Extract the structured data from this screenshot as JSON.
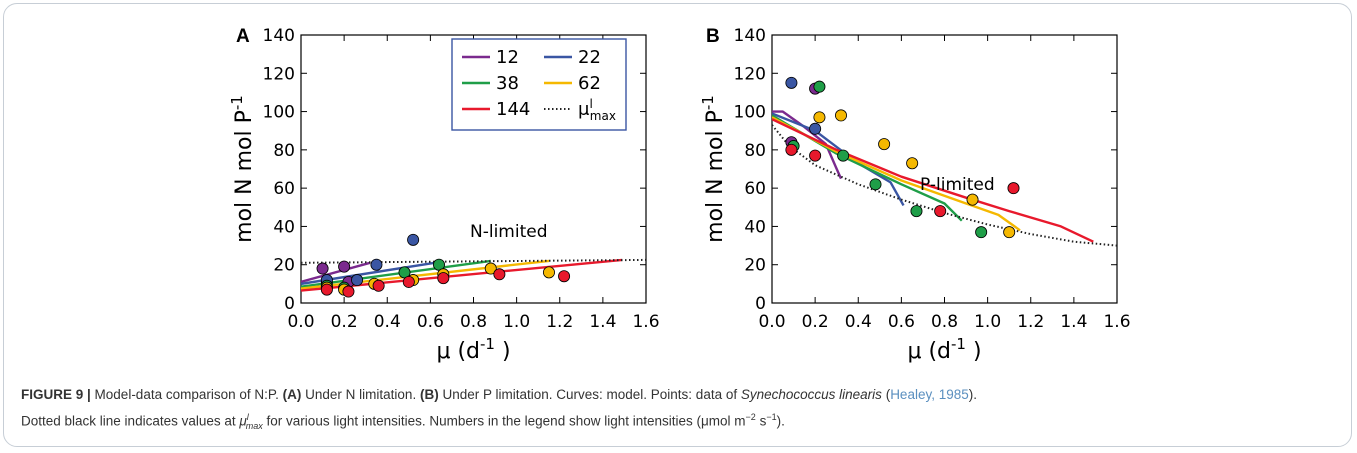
{
  "caption": {
    "figure_label": "FIGURE 9 |",
    "text_1": " Model-data comparison of N:P. ",
    "label_a": "(A)",
    "text_2": " Under N limitation. ",
    "label_b": "(B)",
    "text_3": " Under P limitation. Curves: model. Points: data of ",
    "species": "Synechococcus linearis",
    "text_4": " (",
    "citation": "Healey, 1985",
    "text_5": ").",
    "line2_a": "Dotted black line indicates values at ",
    "mu_symbol": "μ",
    "mu_sup": "l",
    "mu_sub": "max",
    "line2_b": " for various light intensities. Numbers in the legend show light intensities (μmol m",
    "unit_sup1": "−2",
    "line2_c": " s",
    "unit_sup2": "−1",
    "line2_d": ")."
  },
  "chart_data": [
    {
      "panel": "A",
      "type": "line",
      "xlabel": "μ (d-1 )",
      "ylabel": "mol N mol P-1",
      "xlim": [
        0,
        1.6
      ],
      "ylim": [
        0,
        140
      ],
      "xticks": [
        "0.0",
        "0.2",
        "0.4",
        "0.6",
        "0.8",
        "1.0",
        "1.2",
        "1.4",
        "1.6"
      ],
      "yticks": [
        "0",
        "20",
        "40",
        "60",
        "80",
        "100",
        "120",
        "140"
      ],
      "annotation": "N-limited",
      "legend_position": "top-right",
      "series": [
        {
          "name": "12",
          "color": "#7b2a8e",
          "x": [
            0,
            0.32
          ],
          "y": [
            11,
            21
          ]
        },
        {
          "name": "22",
          "color": "#3a56a3",
          "x": [
            0,
            0.62
          ],
          "y": [
            10,
            21
          ]
        },
        {
          "name": "38",
          "color": "#1f9e48",
          "x": [
            0,
            0.88
          ],
          "y": [
            8.5,
            22
          ]
        },
        {
          "name": "62",
          "color": "#f5b800",
          "x": [
            0,
            1.15
          ],
          "y": [
            7.5,
            22
          ]
        },
        {
          "name": "144",
          "color": "#e8192c",
          "x": [
            0,
            1.49
          ],
          "y": [
            6.5,
            22.5
          ]
        },
        {
          "name": "μmax",
          "color": "#222222",
          "style": "dotted",
          "x": [
            0,
            1.6
          ],
          "y": [
            21,
            22.5
          ]
        }
      ],
      "points": [
        {
          "series": "12",
          "x": 0.1,
          "y": 18
        },
        {
          "series": "12",
          "x": 0.2,
          "y": 19
        },
        {
          "series": "12",
          "x": 0.22,
          "y": 11
        },
        {
          "series": "12",
          "x": 0.12,
          "y": 10.5
        },
        {
          "series": "22",
          "x": 0.35,
          "y": 20
        },
        {
          "series": "22",
          "x": 0.52,
          "y": 33
        },
        {
          "series": "22",
          "x": 0.26,
          "y": 12
        },
        {
          "series": "22",
          "x": 0.12,
          "y": 12
        },
        {
          "series": "38",
          "x": 0.48,
          "y": 16
        },
        {
          "series": "38",
          "x": 0.64,
          "y": 20
        },
        {
          "series": "38",
          "x": 0.2,
          "y": 8
        },
        {
          "series": "38",
          "x": 0.12,
          "y": 9
        },
        {
          "series": "62",
          "x": 0.88,
          "y": 18
        },
        {
          "series": "62",
          "x": 1.15,
          "y": 16
        },
        {
          "series": "62",
          "x": 0.66,
          "y": 15
        },
        {
          "series": "62",
          "x": 0.52,
          "y": 12
        },
        {
          "series": "62",
          "x": 0.34,
          "y": 10
        },
        {
          "series": "62",
          "x": 0.2,
          "y": 7
        },
        {
          "series": "62",
          "x": 0.12,
          "y": 8
        },
        {
          "series": "144",
          "x": 0.12,
          "y": 7
        },
        {
          "series": "144",
          "x": 0.22,
          "y": 6
        },
        {
          "series": "144",
          "x": 0.36,
          "y": 9
        },
        {
          "series": "144",
          "x": 0.5,
          "y": 11
        },
        {
          "series": "144",
          "x": 0.66,
          "y": 13
        },
        {
          "series": "144",
          "x": 0.92,
          "y": 15
        },
        {
          "series": "144",
          "x": 1.22,
          "y": 14
        }
      ]
    },
    {
      "panel": "B",
      "type": "line",
      "xlabel": "μ (d-1 )",
      "ylabel": "mol N mol P-1",
      "xlim": [
        0,
        1.6
      ],
      "ylim": [
        0,
        140
      ],
      "xticks": [
        "0.0",
        "0.2",
        "0.4",
        "0.6",
        "0.8",
        "1.0",
        "1.2",
        "1.4",
        "1.6"
      ],
      "yticks": [
        "0",
        "20",
        "40",
        "60",
        "80",
        "100",
        "120",
        "140"
      ],
      "annotation": "P-limited",
      "series": [
        {
          "name": "12",
          "color": "#7b2a8e",
          "x": [
            0,
            0.05,
            0.15,
            0.25,
            0.3,
            0.32
          ],
          "y": [
            100,
            100,
            92,
            83,
            70,
            65
          ]
        },
        {
          "name": "22",
          "color": "#3a56a3",
          "x": [
            0,
            0.2,
            0.4,
            0.55,
            0.61
          ],
          "y": [
            99,
            90,
            73,
            63,
            51
          ]
        },
        {
          "name": "38",
          "color": "#1f9e48",
          "x": [
            0,
            0.3,
            0.6,
            0.8,
            0.88
          ],
          "y": [
            98,
            78,
            62,
            52,
            43
          ]
        },
        {
          "name": "62",
          "color": "#f5b800",
          "x": [
            0,
            0.3,
            0.6,
            0.9,
            1.05,
            1.15
          ],
          "y": [
            97,
            79,
            64,
            52,
            46,
            38
          ]
        },
        {
          "name": "144",
          "color": "#e8192c",
          "x": [
            0,
            0.3,
            0.6,
            0.9,
            1.1,
            1.34,
            1.49
          ],
          "y": [
            96,
            80,
            66,
            55,
            48,
            40,
            32
          ]
        },
        {
          "name": "μmax",
          "color": "#222222",
          "style": "dotted",
          "x": [
            0,
            0.08,
            0.2,
            0.4,
            0.6,
            0.8,
            1.0,
            1.2,
            1.4,
            1.6
          ],
          "y": [
            93,
            82,
            72,
            62,
            54,
            47,
            41,
            36,
            32,
            30
          ]
        }
      ],
      "points": [
        {
          "series": "12",
          "x": 0.09,
          "y": 84
        },
        {
          "series": "12",
          "x": 0.2,
          "y": 112
        },
        {
          "series": "22",
          "x": 0.09,
          "y": 115
        },
        {
          "series": "22",
          "x": 0.2,
          "y": 91
        },
        {
          "series": "38",
          "x": 0.1,
          "y": 82
        },
        {
          "series": "38",
          "x": 0.22,
          "y": 113
        },
        {
          "series": "38",
          "x": 0.33,
          "y": 77
        },
        {
          "series": "38",
          "x": 0.48,
          "y": 62
        },
        {
          "series": "38",
          "x": 0.67,
          "y": 48
        },
        {
          "series": "38",
          "x": 0.97,
          "y": 37
        },
        {
          "series": "62",
          "x": 0.22,
          "y": 97
        },
        {
          "series": "62",
          "x": 0.32,
          "y": 98
        },
        {
          "series": "62",
          "x": 0.52,
          "y": 83
        },
        {
          "series": "62",
          "x": 0.65,
          "y": 73
        },
        {
          "series": "62",
          "x": 0.93,
          "y": 54
        },
        {
          "series": "62",
          "x": 1.1,
          "y": 37
        },
        {
          "series": "144",
          "x": 0.09,
          "y": 80
        },
        {
          "series": "144",
          "x": 0.2,
          "y": 77
        },
        {
          "series": "144",
          "x": 0.78,
          "y": 48
        },
        {
          "series": "144",
          "x": 1.12,
          "y": 60
        }
      ]
    }
  ]
}
